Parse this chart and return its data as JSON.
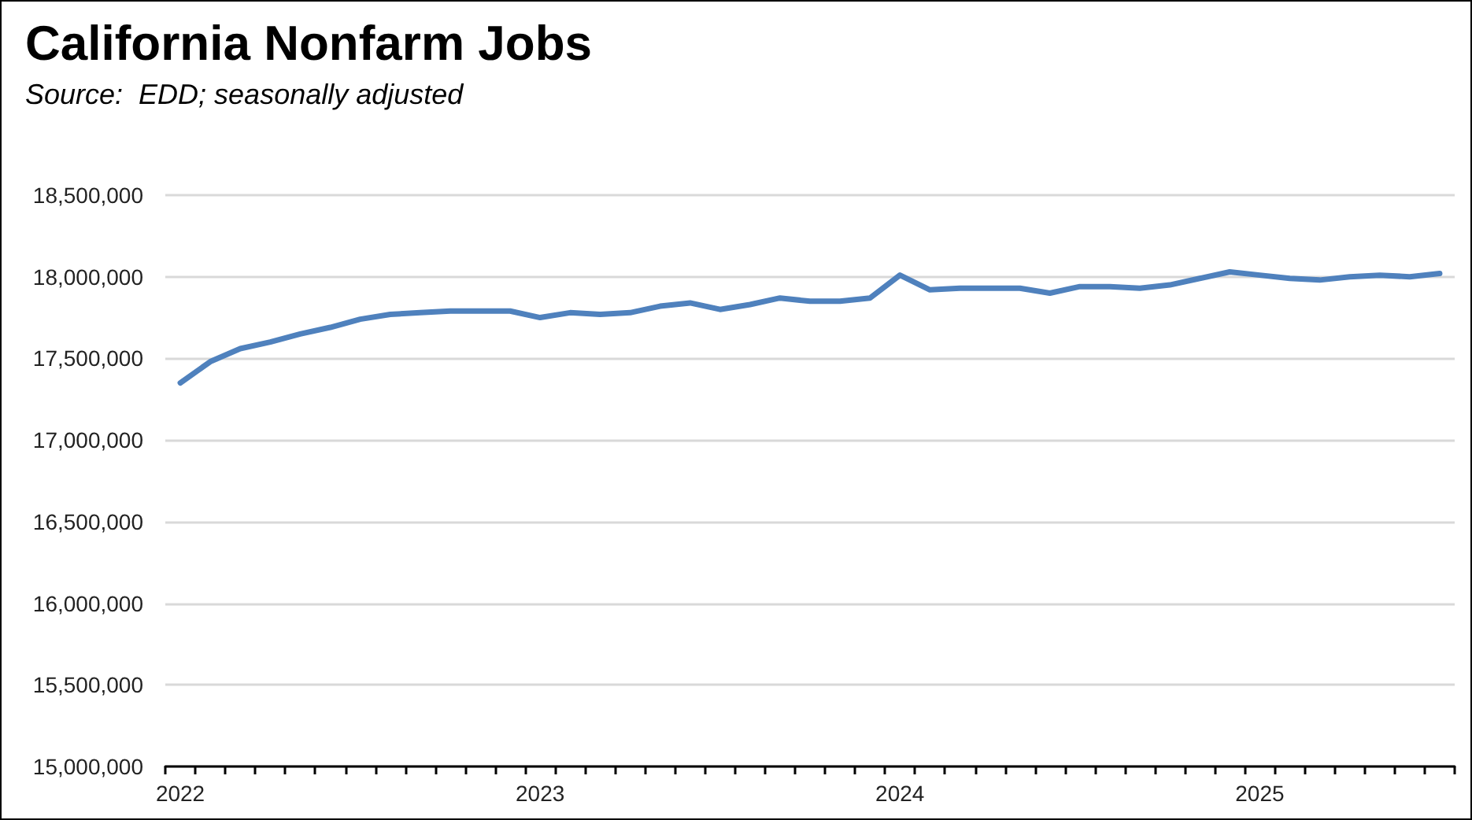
{
  "chart_data": {
    "type": "line",
    "title": "California Nonfarm Jobs",
    "subtitle": "Source:  EDD; seasonally adjusted",
    "categories": [
      "2022",
      null,
      null,
      null,
      null,
      null,
      null,
      null,
      null,
      null,
      null,
      null,
      "2023",
      null,
      null,
      null,
      null,
      null,
      null,
      null,
      null,
      null,
      null,
      null,
      "2024",
      null,
      null,
      null,
      null,
      null,
      null,
      null,
      null,
      null,
      null,
      null,
      "2025",
      null,
      null,
      null,
      null,
      null,
      null
    ],
    "series": [
      {
        "color": "#4f81bd",
        "values": [
          17350000,
          17480000,
          17560000,
          17600000,
          17650000,
          17690000,
          17740000,
          17770000,
          17780000,
          17790000,
          17790000,
          17790000,
          17750000,
          17780000,
          17770000,
          17780000,
          17820000,
          17840000,
          17800000,
          17830000,
          17870000,
          17850000,
          17850000,
          17870000,
          18010000,
          17920000,
          17930000,
          17930000,
          17930000,
          17900000,
          17940000,
          17940000,
          17930000,
          17950000,
          17990000,
          18030000,
          18010000,
          17990000,
          17980000,
          18000000,
          18010000,
          18000000,
          18020000
        ]
      }
    ],
    "ylim": [
      15000000,
      18500000
    ],
    "yticks": [
      {
        "value": 15000000,
        "label": "15,000,000"
      },
      {
        "value": 15500000,
        "label": "15,500,000"
      },
      {
        "value": 16000000,
        "label": "16,000,000"
      },
      {
        "value": 16500000,
        "label": "16,500,000"
      },
      {
        "value": 17000000,
        "label": "17,000,000"
      },
      {
        "value": 17500000,
        "label": "17,500,000"
      },
      {
        "value": 18000000,
        "label": "18,000,000"
      },
      {
        "value": 18500000,
        "label": "18,500,000"
      }
    ],
    "grid": "y",
    "marker": "none",
    "line_style": "solid"
  }
}
